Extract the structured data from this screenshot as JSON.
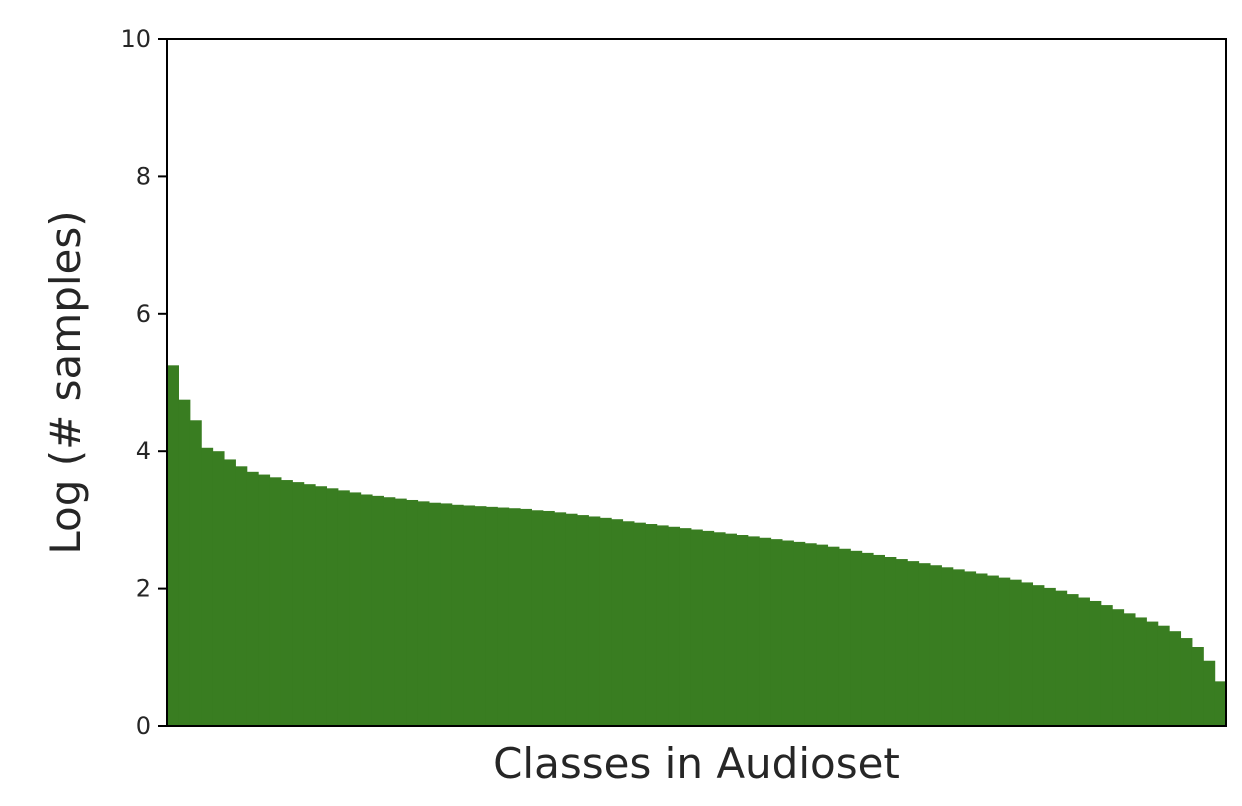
{
  "chart_data": {
    "type": "bar",
    "title": "",
    "xlabel": "Classes in Audioset",
    "ylabel": "Log (# samples)",
    "ylim": [
      0,
      10
    ],
    "yticks": [
      0,
      2,
      4,
      6,
      8,
      10
    ],
    "xticks": [],
    "grid": false,
    "legend": "none",
    "bar_color": "#397d21",
    "n_classes": 527,
    "sorted": "descending",
    "values": [
      5.25,
      4.75,
      4.45,
      4.05,
      4.0,
      3.88,
      3.78,
      3.7,
      3.66,
      3.62,
      3.58,
      3.55,
      3.52,
      3.49,
      3.46,
      3.43,
      3.4,
      3.37,
      3.35,
      3.33,
      3.31,
      3.29,
      3.27,
      3.25,
      3.24,
      3.22,
      3.21,
      3.2,
      3.19,
      3.18,
      3.17,
      3.16,
      3.14,
      3.13,
      3.11,
      3.09,
      3.07,
      3.05,
      3.03,
      3.01,
      2.98,
      2.96,
      2.94,
      2.92,
      2.9,
      2.88,
      2.86,
      2.84,
      2.82,
      2.8,
      2.78,
      2.76,
      2.74,
      2.72,
      2.7,
      2.68,
      2.66,
      2.64,
      2.61,
      2.58,
      2.55,
      2.52,
      2.49,
      2.46,
      2.43,
      2.4,
      2.37,
      2.34,
      2.31,
      2.28,
      2.25,
      2.22,
      2.19,
      2.16,
      2.13,
      2.09,
      2.05,
      2.01,
      1.97,
      1.92,
      1.87,
      1.82,
      1.76,
      1.7,
      1.64,
      1.58,
      1.52,
      1.46,
      1.38,
      1.28,
      1.15,
      0.95,
      0.65
    ]
  }
}
